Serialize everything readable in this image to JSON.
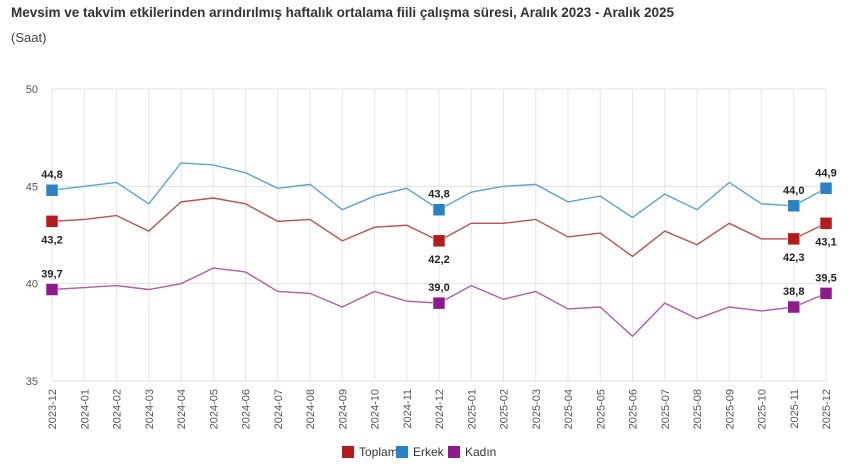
{
  "chart_data": {
    "type": "line",
    "title": "Mevsim ve takvim etkilerinden arındırılmış haftalık ortalama fiili çalışma süresi, Aralık 2023 - Aralık 2025",
    "subtitle": "(Saat)",
    "xlabel": "",
    "ylabel": "",
    "ylim": [
      35,
      50
    ],
    "yticks": [
      35,
      40,
      45,
      50
    ],
    "grid": true,
    "legend": "bottom",
    "categories": [
      "2023-12",
      "2024-01",
      "2024-02",
      "2024-03",
      "2024-04",
      "2024-05",
      "2024-06",
      "2024-07",
      "2024-08",
      "2024-09",
      "2024-10",
      "2024-11",
      "2024-12",
      "2025-01",
      "2025-02",
      "2025-03",
      "2025-04",
      "2025-05",
      "2025-06",
      "2025-07",
      "2025-08",
      "2025-09",
      "2025-10",
      "2025-11",
      "2025-12"
    ],
    "labeled_points": [
      0,
      12,
      23,
      24
    ],
    "series": [
      {
        "name": "Toplam",
        "color": "#c0504d",
        "marker_color": "#b71c1c",
        "label_position": "below",
        "values": [
          43.2,
          43.3,
          43.5,
          42.7,
          44.2,
          44.4,
          44.1,
          43.2,
          43.3,
          42.2,
          42.9,
          43.0,
          42.2,
          43.1,
          43.1,
          43.3,
          42.4,
          42.6,
          41.4,
          42.7,
          42.0,
          43.1,
          42.3,
          42.3,
          43.1
        ],
        "labels": [
          "43,2",
          "42,2",
          "42,3",
          "43,1"
        ]
      },
      {
        "name": "Erkek",
        "color": "#5ba3d0",
        "marker_color": "#2a82c6",
        "label_position": "above",
        "values": [
          44.8,
          45.0,
          45.2,
          44.1,
          46.2,
          46.1,
          45.7,
          44.9,
          45.1,
          43.8,
          44.5,
          44.9,
          43.8,
          44.7,
          45.0,
          45.1,
          44.2,
          44.5,
          43.4,
          44.6,
          43.8,
          45.2,
          44.1,
          44.0,
          44.9
        ],
        "labels": [
          "44,8",
          "43,8",
          "44,0",
          "44,9"
        ]
      },
      {
        "name": "Kadın",
        "color": "#b05bb0",
        "marker_color": "#8e1a8e",
        "label_position": "above",
        "values": [
          39.7,
          39.8,
          39.9,
          39.7,
          40.0,
          40.8,
          40.6,
          39.6,
          39.5,
          38.8,
          39.6,
          39.1,
          39.0,
          39.9,
          39.2,
          39.6,
          38.7,
          38.8,
          37.3,
          39.0,
          38.2,
          38.8,
          38.6,
          38.8,
          39.5
        ],
        "labels": [
          "39,7",
          "39,0",
          "38,8",
          "39,5"
        ]
      }
    ]
  }
}
